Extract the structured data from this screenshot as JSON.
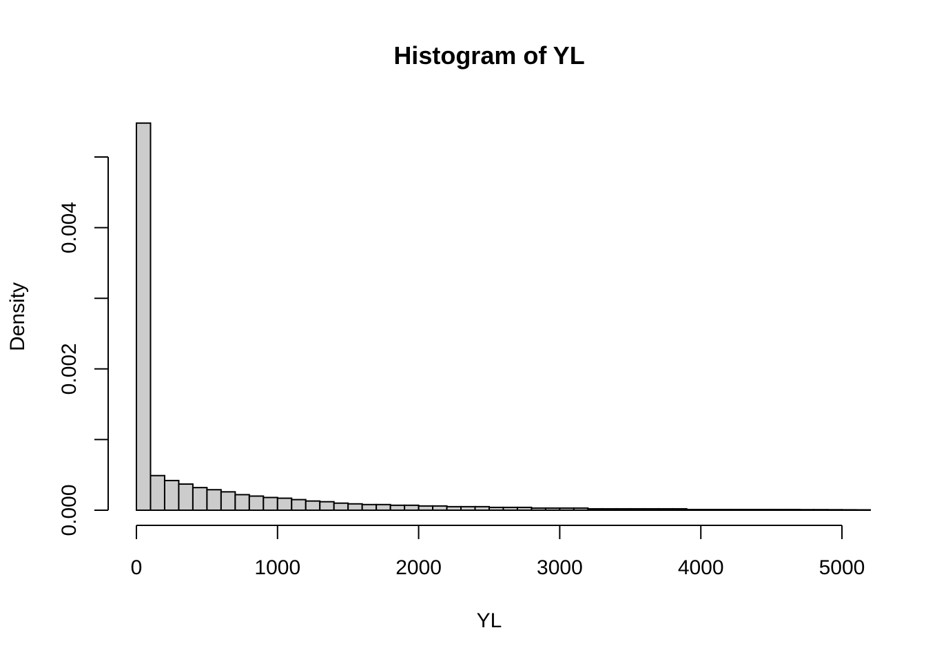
{
  "chart_data": {
    "type": "bar",
    "subtype": "histogram",
    "title": "Histogram of YL",
    "xlabel": "YL",
    "ylabel": "Density",
    "xlim": [
      0,
      5200
    ],
    "ylim": [
      0,
      0.005
    ],
    "bin_width": 100,
    "x_ticks": [
      0,
      1000,
      2000,
      3000,
      4000,
      5000
    ],
    "x_tick_labels": [
      "0",
      "1000",
      "2000",
      "3000",
      "4000",
      "5000"
    ],
    "y_ticks": [
      0,
      0.001,
      0.002,
      0.003,
      0.004,
      0.005
    ],
    "y_tick_labels": [
      "0.000",
      "",
      "0.002",
      "",
      "0.004",
      ""
    ],
    "bar_fill": "#cccccc",
    "bar_stroke": "#000000",
    "grid": false,
    "values": [
      0.00548,
      0.00049,
      0.00042,
      0.00037,
      0.00032,
      0.00029,
      0.00026,
      0.00022,
      0.0002,
      0.00018,
      0.00017,
      0.00015,
      0.00013,
      0.00012,
      0.0001,
      9e-05,
      8e-05,
      8e-05,
      7e-05,
      7e-05,
      6e-05,
      6e-05,
      5e-05,
      5e-05,
      5e-05,
      4e-05,
      4e-05,
      4e-05,
      3e-05,
      3e-05,
      3e-05,
      3e-05,
      2e-05,
      2e-05,
      2e-05,
      2e-05,
      2e-05,
      2e-05,
      2e-05,
      1e-05,
      1e-05,
      1e-05,
      1e-05,
      1e-05,
      1e-05,
      1e-05,
      1e-05,
      8e-06,
      8e-06,
      7e-06,
      6e-06,
      5e-06
    ]
  }
}
